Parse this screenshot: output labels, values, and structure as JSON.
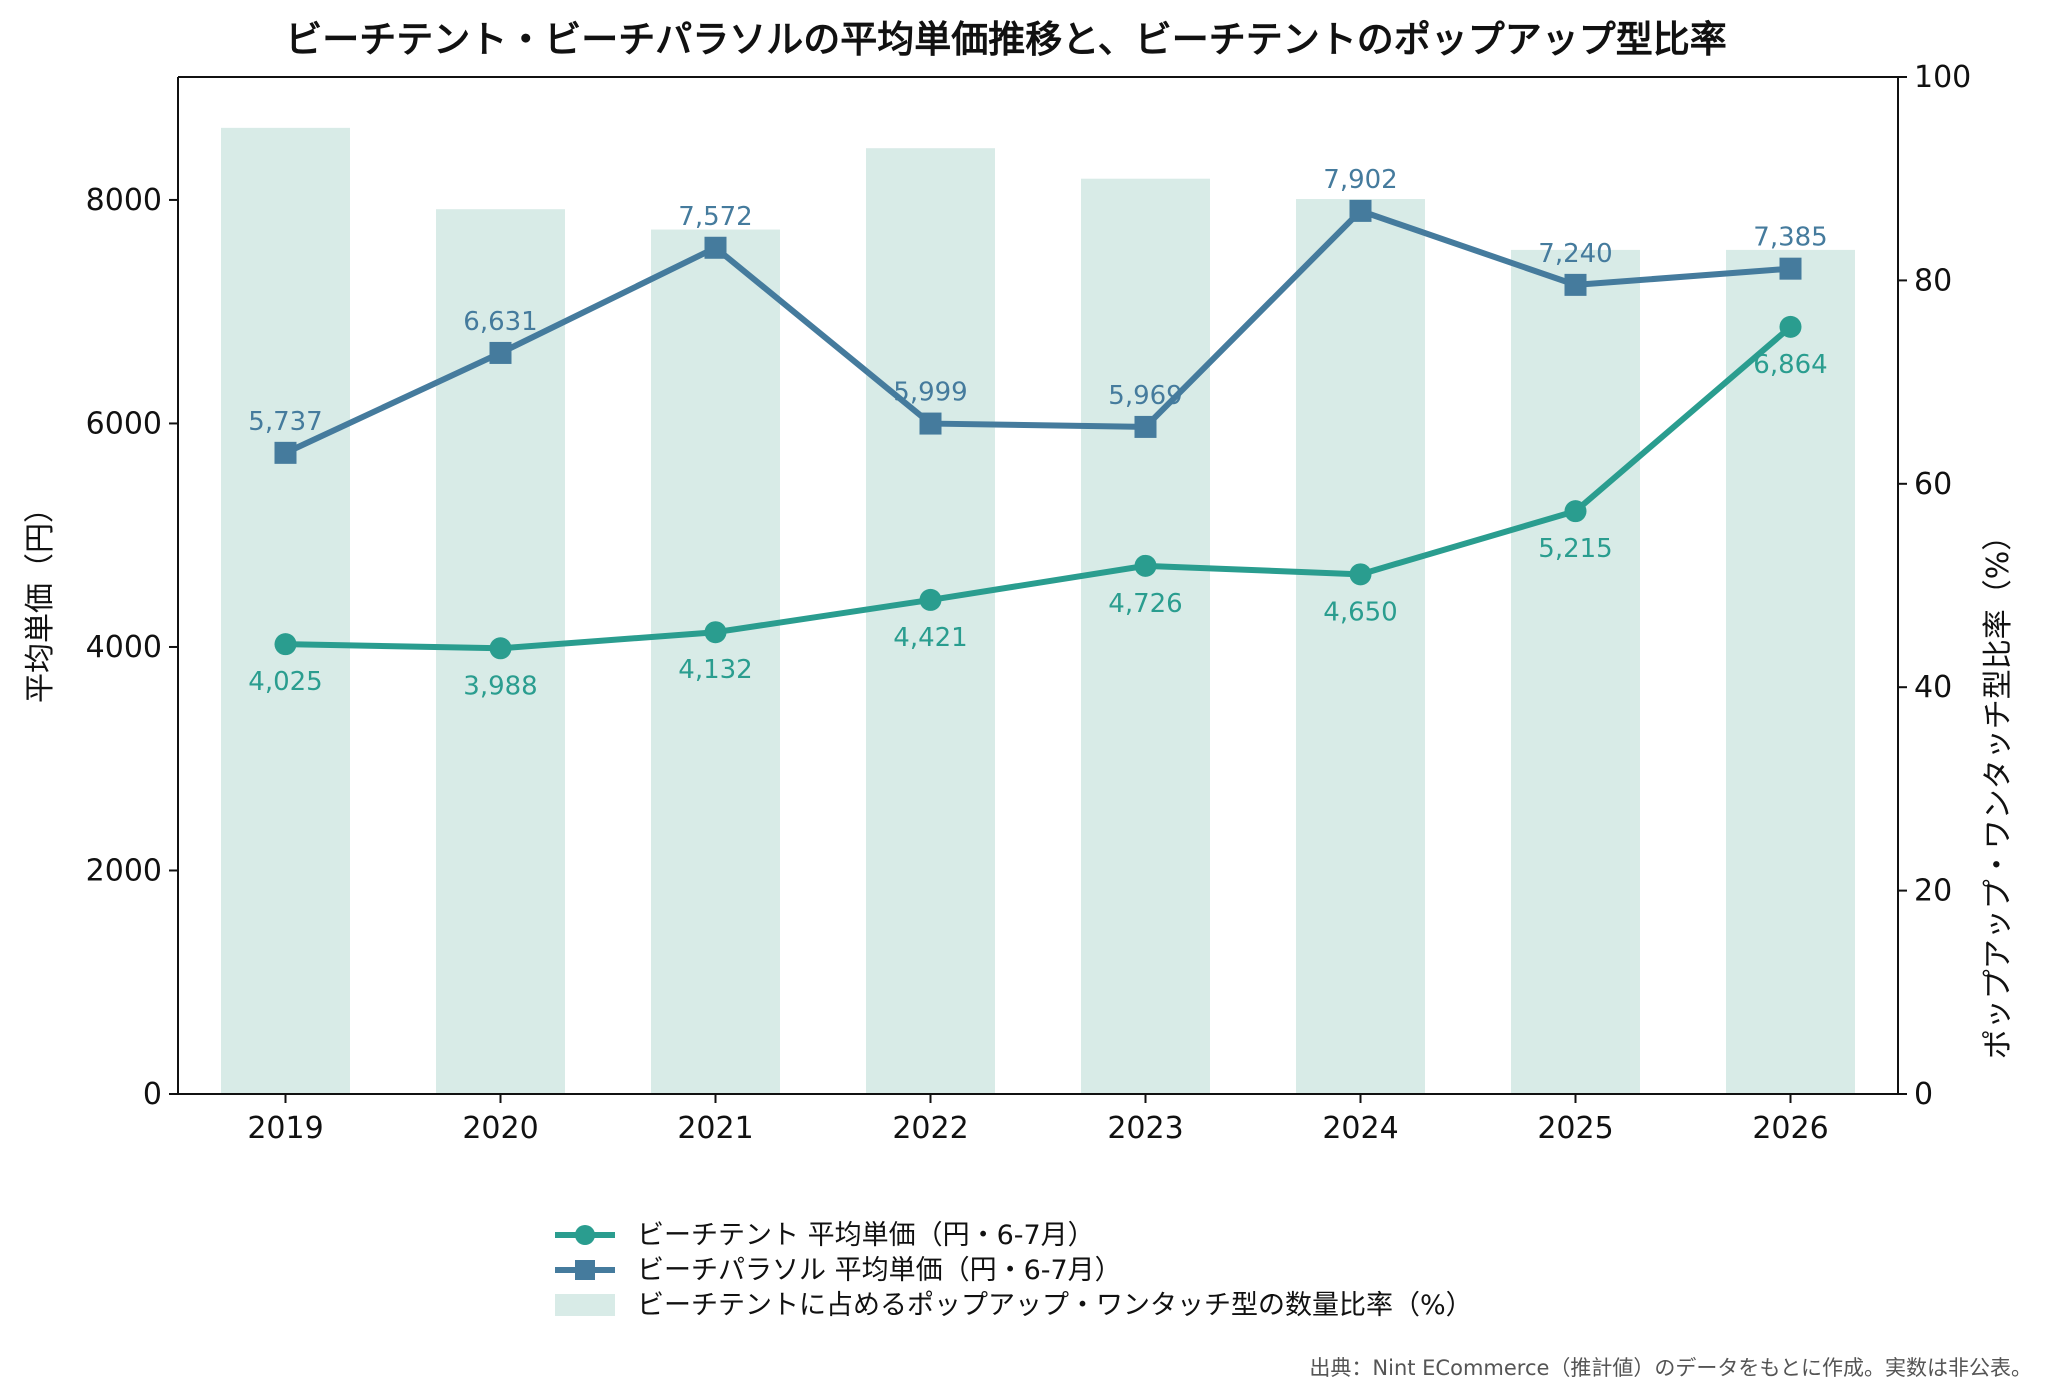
{
  "chart_data": {
    "type": "bar+line",
    "title": "ビーチテント・ビーチパラソルの平均単価推移と、ビーチテントのポップアップ型比率",
    "categories": [
      "2019",
      "2020",
      "2021",
      "2022",
      "2023",
      "2024",
      "2025",
      "2026"
    ],
    "ylabel": "平均単価（円）",
    "ylabel_right": "ポップアップ・ワンタッチ型比率（%）",
    "ylim": [
      0,
      9100
    ],
    "ylim_right": [
      0,
      100
    ],
    "yticks": [
      "0",
      "2000",
      "4000",
      "6000",
      "8000"
    ],
    "yticks_right": [
      "0",
      "20",
      "40",
      "60",
      "80",
      "100"
    ],
    "grid": false,
    "legend_position": "bottom-center",
    "series": [
      {
        "name": "ビーチテント 平均単価（円・6-7月）",
        "kind": "line",
        "marker": "circle",
        "axis": "left",
        "color": "#2a9d8f",
        "values": [
          4025,
          3988,
          4132,
          4421,
          4726,
          4650,
          5215,
          6864
        ],
        "labels": [
          "4,025",
          "3,988",
          "4,132",
          "4,421",
          "4,726",
          "4,650",
          "5,215",
          "6,864"
        ]
      },
      {
        "name": "ビーチパラソル 平均単価（円・6-7月）",
        "kind": "line",
        "marker": "square",
        "axis": "left",
        "color": "#457b9d",
        "values": [
          5737,
          6631,
          7572,
          5999,
          5969,
          7902,
          7240,
          7385
        ],
        "labels": [
          "5,737",
          "6,631",
          "7,572",
          "5,999",
          "5,969",
          "7,902",
          "7,240",
          "7,385"
        ]
      },
      {
        "name": "ビーチテントに占めるポップアップ・ワンタッチ型の数量比率（%）",
        "kind": "bar",
        "axis": "right",
        "color": "#d8ebe7",
        "values": [
          95,
          87,
          85,
          93,
          90,
          88,
          83,
          83
        ]
      }
    ],
    "source": "出典：Nint ECommerce（推計値）のデータをもとに作成。実数は非公表。"
  }
}
